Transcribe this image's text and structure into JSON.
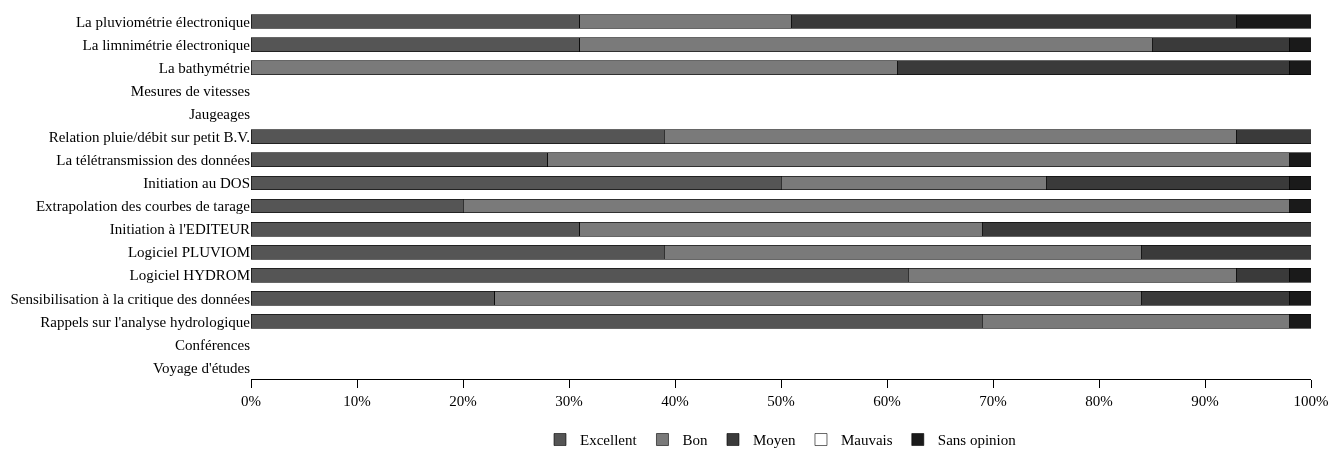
{
  "chart_data": {
    "type": "bar",
    "orientation": "horizontal",
    "stacked": true,
    "categories": [
      "La pluviométrie électronique",
      "La limnimétrie électronique",
      "La bathymétrie",
      "Mesures de vitesses",
      "Jaugeages",
      "Relation pluie/débit sur petit B.V.",
      "La télétransmission des données",
      "Initiation au DOS",
      "Extrapolation des courbes de tarage",
      "Initiation à l'EDITEUR",
      "Logiciel PLUVIOM",
      "Logiciel HYDROM",
      "Sensibilisation à la critique des données",
      "Rappels sur l'analyse hydrologique",
      "Conférences",
      "Voyage d'études"
    ],
    "series": [
      {
        "name": "Excellent",
        "color": "#555555",
        "values": [
          31,
          31,
          null,
          null,
          null,
          39,
          28,
          50,
          20,
          31,
          39,
          62,
          23,
          69,
          null,
          null
        ]
      },
      {
        "name": "Bon",
        "color": "#7a7a7a",
        "values": [
          20,
          54,
          61,
          null,
          null,
          54,
          70,
          25,
          78,
          38,
          45,
          31,
          61,
          29,
          null,
          null
        ]
      },
      {
        "name": "Moyen",
        "color": "#3a3a3a",
        "values": [
          42,
          13,
          37,
          null,
          null,
          7,
          null,
          23,
          null,
          31,
          16,
          5,
          14,
          null,
          null,
          null
        ]
      },
      {
        "name": "Mauvais",
        "color": "#ffffff",
        "values": [
          null,
          null,
          null,
          null,
          null,
          null,
          null,
          null,
          null,
          null,
          null,
          null,
          null,
          null,
          null,
          null
        ]
      },
      {
        "name": "Sans opinion",
        "color": "#1a1a1a",
        "values": [
          7,
          2,
          2,
          null,
          null,
          null,
          2,
          2,
          2,
          null,
          null,
          2,
          2,
          2,
          null,
          null
        ]
      }
    ],
    "xlim": [
      0,
      100
    ],
    "xticks": [
      {
        "value": 0,
        "label": "0%"
      },
      {
        "value": 10,
        "label": "10%"
      },
      {
        "value": 20,
        "label": "20%"
      },
      {
        "value": 30,
        "label": "30%"
      },
      {
        "value": 40,
        "label": "40%"
      },
      {
        "value": 50,
        "label": "50%"
      },
      {
        "value": 60,
        "label": "60%"
      },
      {
        "value": 70,
        "label": "70%"
      },
      {
        "value": 80,
        "label": "80%"
      },
      {
        "value": 90,
        "label": "90%"
      },
      {
        "value": 100,
        "label": "100%"
      }
    ],
    "legend": "bottom"
  }
}
